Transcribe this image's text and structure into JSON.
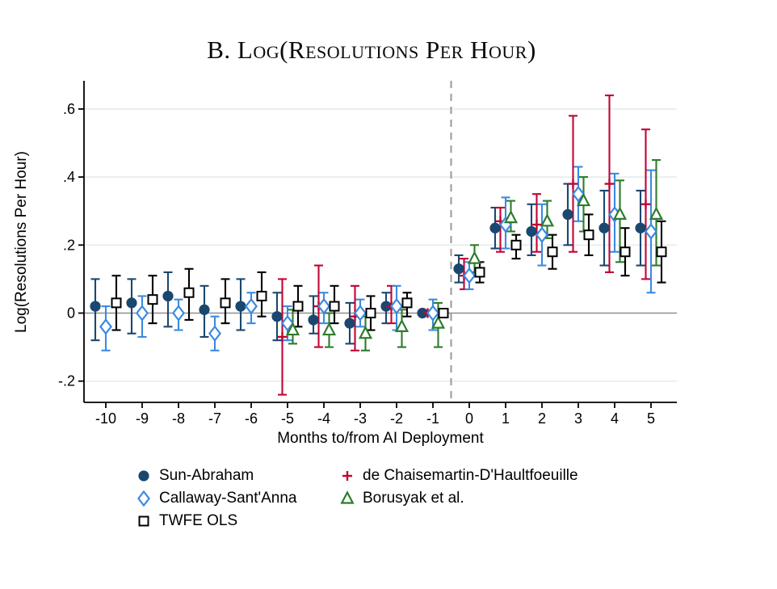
{
  "chart_data": {
    "type": "scatter",
    "subtype": "event-study-errorbar",
    "title": "B. Log(Resolutions Per Hour)",
    "xlabel": "Months to/from AI Deployment",
    "ylabel": "Log(Resolutions Per Hour)",
    "x_ticks": [
      -10,
      -9,
      -8,
      -7,
      -6,
      -5,
      -4,
      -3,
      -2,
      -1,
      0,
      1,
      2,
      3,
      4,
      5
    ],
    "y_ticks": [
      {
        "v": 0.6,
        "label": ".6"
      },
      {
        "v": 0.4,
        "label": ".4"
      },
      {
        "v": 0.2,
        "label": ".2"
      },
      {
        "v": 0.0,
        "label": "0"
      },
      {
        "v": -0.2,
        "label": "-.2"
      }
    ],
    "ylim": [
      -0.27,
      0.68
    ],
    "xlim": [
      -10.6,
      5.7
    ],
    "grid": "horizontal-light",
    "zero_line": true,
    "reference_line_x": -0.5,
    "colors": {
      "sun_abraham": "#1a476f",
      "callaway": "#3b8ae0",
      "dcdh": "#c10534",
      "borusyak": "#2c7c2c",
      "twfe": "#000000",
      "zero_line": "#8f8f8f",
      "gridline": "#e3eeec",
      "dashed_line": "#999999",
      "axis": "#000000"
    },
    "series": [
      {
        "name": "Sun-Abraham",
        "marker": "filled-circle",
        "color": "#1a476f",
        "points": [
          {
            "x": -10,
            "est": 0.02,
            "lo": -0.08,
            "hi": 0.1
          },
          {
            "x": -9,
            "est": 0.03,
            "lo": -0.06,
            "hi": 0.1
          },
          {
            "x": -8,
            "est": 0.05,
            "lo": -0.04,
            "hi": 0.12
          },
          {
            "x": -7,
            "est": 0.01,
            "lo": -0.07,
            "hi": 0.08
          },
          {
            "x": -6,
            "est": 0.02,
            "lo": -0.05,
            "hi": 0.1
          },
          {
            "x": -5,
            "est": -0.01,
            "lo": -0.08,
            "hi": 0.06
          },
          {
            "x": -4,
            "est": -0.02,
            "lo": -0.06,
            "hi": 0.05
          },
          {
            "x": -3,
            "est": -0.03,
            "lo": -0.09,
            "hi": 0.03
          },
          {
            "x": -2,
            "est": 0.02,
            "lo": -0.03,
            "hi": 0.06
          },
          {
            "x": -1,
            "est": 0.0,
            "lo": null,
            "hi": null
          },
          {
            "x": 0,
            "est": 0.13,
            "lo": 0.09,
            "hi": 0.17
          },
          {
            "x": 1,
            "est": 0.25,
            "lo": 0.19,
            "hi": 0.31
          },
          {
            "x": 2,
            "est": 0.24,
            "lo": 0.17,
            "hi": 0.32
          },
          {
            "x": 3,
            "est": 0.29,
            "lo": 0.2,
            "hi": 0.38
          },
          {
            "x": 4,
            "est": 0.25,
            "lo": 0.14,
            "hi": 0.36
          },
          {
            "x": 5,
            "est": 0.25,
            "lo": 0.14,
            "hi": 0.36
          }
        ]
      },
      {
        "name": "de Chaisemartin-D'Haultfoeuille",
        "marker": "plus",
        "color": "#c10534",
        "points": [
          {
            "x": -5,
            "est": -0.07,
            "lo": -0.24,
            "hi": 0.1
          },
          {
            "x": -4,
            "est": 0.02,
            "lo": -0.1,
            "hi": 0.14
          },
          {
            "x": -3,
            "est": -0.01,
            "lo": -0.11,
            "hi": 0.08
          },
          {
            "x": -2,
            "est": 0.02,
            "lo": -0.03,
            "hi": 0.08
          },
          {
            "x": -1,
            "est": 0.0,
            "lo": null,
            "hi": null
          },
          {
            "x": 0,
            "est": 0.11,
            "lo": 0.07,
            "hi": 0.16
          },
          {
            "x": 1,
            "est": 0.27,
            "lo": 0.18,
            "hi": 0.31
          },
          {
            "x": 2,
            "est": 0.26,
            "lo": 0.18,
            "hi": 0.35
          },
          {
            "x": 3,
            "est": 0.38,
            "lo": 0.18,
            "hi": 0.58
          },
          {
            "x": 4,
            "est": 0.38,
            "lo": 0.12,
            "hi": 0.64
          },
          {
            "x": 5,
            "est": 0.32,
            "lo": 0.1,
            "hi": 0.54
          }
        ]
      },
      {
        "name": "Callaway-Sant'Anna",
        "marker": "diamond",
        "color": "#3b8ae0",
        "points": [
          {
            "x": -10,
            "est": -0.04,
            "lo": -0.11,
            "hi": 0.02
          },
          {
            "x": -9,
            "est": 0.0,
            "lo": -0.07,
            "hi": 0.05
          },
          {
            "x": -8,
            "est": 0.0,
            "lo": -0.05,
            "hi": 0.04
          },
          {
            "x": -7,
            "est": -0.06,
            "lo": -0.11,
            "hi": -0.01
          },
          {
            "x": -6,
            "est": 0.02,
            "lo": -0.03,
            "hi": 0.06
          },
          {
            "x": -5,
            "est": -0.03,
            "lo": -0.08,
            "hi": 0.02
          },
          {
            "x": -4,
            "est": 0.02,
            "lo": -0.03,
            "hi": 0.06
          },
          {
            "x": -3,
            "est": 0.0,
            "lo": -0.04,
            "hi": 0.04
          },
          {
            "x": -2,
            "est": 0.02,
            "lo": -0.05,
            "hi": 0.08
          },
          {
            "x": -1,
            "est": 0.0,
            "lo": -0.05,
            "hi": 0.04
          },
          {
            "x": 0,
            "est": 0.11,
            "lo": 0.07,
            "hi": 0.15
          },
          {
            "x": 1,
            "est": 0.26,
            "lo": 0.19,
            "hi": 0.34
          },
          {
            "x": 2,
            "est": 0.23,
            "lo": 0.14,
            "hi": 0.32
          },
          {
            "x": 3,
            "est": 0.35,
            "lo": 0.27,
            "hi": 0.43
          },
          {
            "x": 4,
            "est": 0.29,
            "lo": 0.18,
            "hi": 0.41
          },
          {
            "x": 5,
            "est": 0.24,
            "lo": 0.06,
            "hi": 0.42
          }
        ]
      },
      {
        "name": "Borusyak et al.",
        "marker": "triangle",
        "color": "#2c7c2c",
        "points": [
          {
            "x": -5,
            "est": -0.05,
            "lo": -0.09,
            "hi": 0.01
          },
          {
            "x": -4,
            "est": -0.05,
            "lo": -0.1,
            "hi": 0.0
          },
          {
            "x": -3,
            "est": -0.06,
            "lo": -0.11,
            "hi": -0.01
          },
          {
            "x": -2,
            "est": -0.04,
            "lo": -0.1,
            "hi": 0.01
          },
          {
            "x": -1,
            "est": -0.03,
            "lo": -0.1,
            "hi": 0.03
          },
          {
            "x": 0,
            "est": 0.16,
            "lo": 0.12,
            "hi": 0.2
          },
          {
            "x": 1,
            "est": 0.28,
            "lo": 0.24,
            "hi": 0.33
          },
          {
            "x": 2,
            "est": 0.27,
            "lo": 0.22,
            "hi": 0.33
          },
          {
            "x": 3,
            "est": 0.33,
            "lo": 0.24,
            "hi": 0.4
          },
          {
            "x": 4,
            "est": 0.29,
            "lo": 0.15,
            "hi": 0.39
          },
          {
            "x": 5,
            "est": 0.29,
            "lo": 0.14,
            "hi": 0.45
          }
        ]
      },
      {
        "name": "TWFE OLS",
        "marker": "square",
        "color": "#000000",
        "points": [
          {
            "x": -10,
            "est": 0.03,
            "lo": -0.05,
            "hi": 0.11
          },
          {
            "x": -9,
            "est": 0.04,
            "lo": -0.03,
            "hi": 0.11
          },
          {
            "x": -8,
            "est": 0.06,
            "lo": -0.02,
            "hi": 0.13
          },
          {
            "x": -7,
            "est": 0.03,
            "lo": -0.03,
            "hi": 0.1
          },
          {
            "x": -6,
            "est": 0.05,
            "lo": -0.01,
            "hi": 0.12
          },
          {
            "x": -5,
            "est": 0.02,
            "lo": -0.04,
            "hi": 0.08
          },
          {
            "x": -4,
            "est": 0.02,
            "lo": -0.03,
            "hi": 0.08
          },
          {
            "x": -3,
            "est": 0.0,
            "lo": -0.05,
            "hi": 0.05
          },
          {
            "x": -2,
            "est": 0.03,
            "lo": -0.01,
            "hi": 0.06
          },
          {
            "x": -1,
            "est": 0.0,
            "lo": null,
            "hi": null
          },
          {
            "x": 0,
            "est": 0.12,
            "lo": 0.09,
            "hi": 0.15
          },
          {
            "x": 1,
            "est": 0.2,
            "lo": 0.16,
            "hi": 0.23
          },
          {
            "x": 2,
            "est": 0.18,
            "lo": 0.13,
            "hi": 0.23
          },
          {
            "x": 3,
            "est": 0.23,
            "lo": 0.17,
            "hi": 0.29
          },
          {
            "x": 4,
            "est": 0.18,
            "lo": 0.11,
            "hi": 0.25
          },
          {
            "x": 5,
            "est": 0.18,
            "lo": 0.09,
            "hi": 0.27
          }
        ]
      }
    ],
    "legend": [
      {
        "label": "Sun-Abraham",
        "marker": "filled-circle",
        "color": "#1a476f",
        "col": 0,
        "row": 0
      },
      {
        "label": "Callaway-Sant'Anna",
        "marker": "diamond",
        "color": "#3b8ae0",
        "col": 0,
        "row": 1
      },
      {
        "label": "TWFE OLS",
        "marker": "square",
        "color": "#000000",
        "col": 0,
        "row": 2
      },
      {
        "label": "de Chaisemartin-D'Haultfoeuille",
        "marker": "plus",
        "color": "#c10534",
        "col": 1,
        "row": 0
      },
      {
        "label": "Borusyak et al.",
        "marker": "triangle",
        "color": "#2c7c2c",
        "col": 1,
        "row": 1
      }
    ],
    "legend_position": "below"
  }
}
